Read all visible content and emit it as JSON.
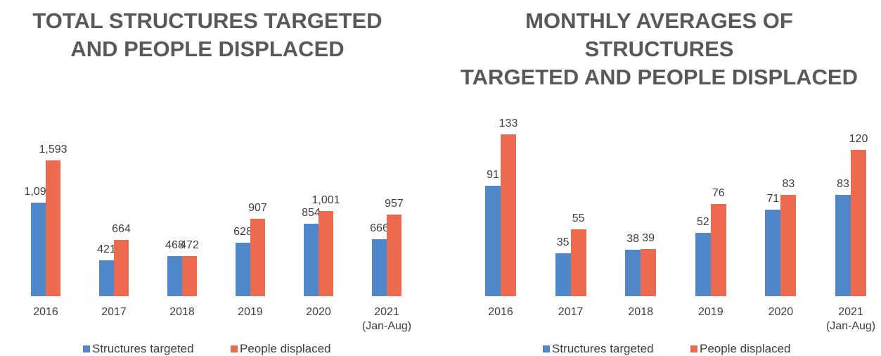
{
  "chart_data": [
    {
      "type": "bar",
      "title": "TOTAL STRUCTURES TARGETED\nAND PEOPLE DISPLACED",
      "categories": [
        "2016",
        "2017",
        "2018",
        "2019",
        "2020",
        "2021\n(Jan-Aug)"
      ],
      "series": [
        {
          "name": "Structures targeted",
          "color": "#4f87c8",
          "values": [
            1094,
            421,
            468,
            628,
            854,
            666
          ],
          "value_labels": [
            "1,094",
            "421",
            "468",
            "628",
            "854",
            "666"
          ]
        },
        {
          "name": "People displaced",
          "color": "#ee6a4e",
          "values": [
            1593,
            664,
            472,
            907,
            1001,
            957
          ],
          "value_labels": [
            "1,593",
            "664",
            "472",
            "907",
            "1,001",
            "957"
          ]
        }
      ]
    },
    {
      "type": "bar",
      "title": "MONTHLY AVERAGES OF STRUCTURES\nTARGETED AND PEOPLE DISPLACED",
      "categories": [
        "2016",
        "2017",
        "2018",
        "2019",
        "2020",
        "2021\n(Jan-Aug)"
      ],
      "series": [
        {
          "name": "Structures targeted",
          "color": "#4f87c8",
          "values": [
            91,
            35,
            38,
            52,
            71,
            83
          ]
        },
        {
          "name": "People displaced",
          "color": "#ee6a4e",
          "values": [
            133,
            55,
            39,
            76,
            83,
            120
          ]
        }
      ]
    }
  ]
}
